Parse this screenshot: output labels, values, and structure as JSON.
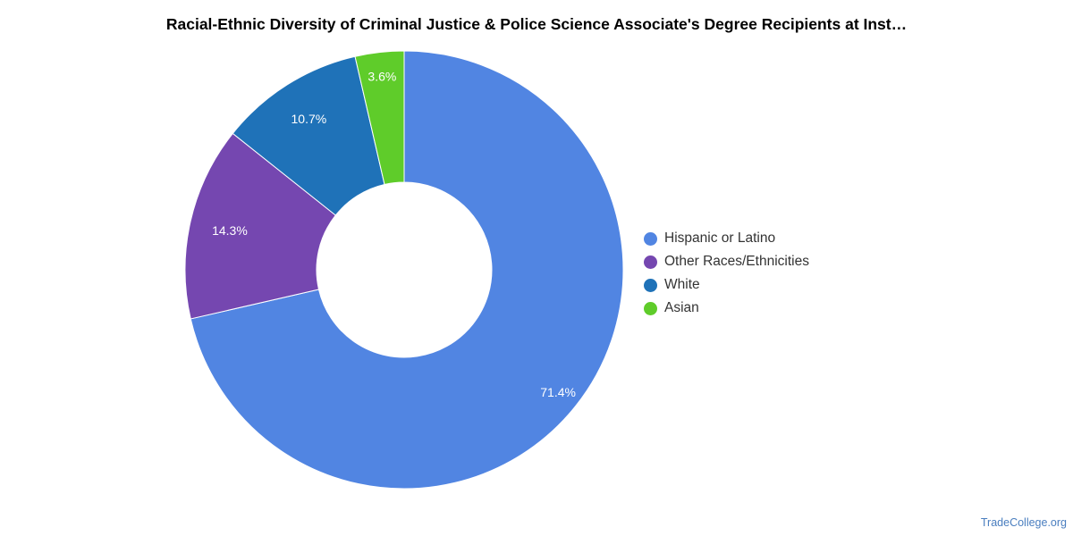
{
  "chart_data": {
    "type": "pie",
    "title": "Racial-Ethnic Diversity of Criminal Justice & Police Science Associate's Degree Recipients at Inst…",
    "donut": true,
    "legend_position": "right",
    "slices": [
      {
        "label": "Hispanic or Latino",
        "value": 71.4,
        "value_label": "71.4%",
        "color": "#5185e2"
      },
      {
        "label": "Other Races/Ethnicities",
        "value": 14.3,
        "value_label": "14.3%",
        "color": "#7547b0"
      },
      {
        "label": "White",
        "value": 10.7,
        "value_label": "10.7%",
        "color": "#1f72b8"
      },
      {
        "label": "Asian",
        "value": 3.6,
        "value_label": "3.6%",
        "color": "#5fcc2a"
      }
    ]
  },
  "credit": "TradeCollege.org"
}
